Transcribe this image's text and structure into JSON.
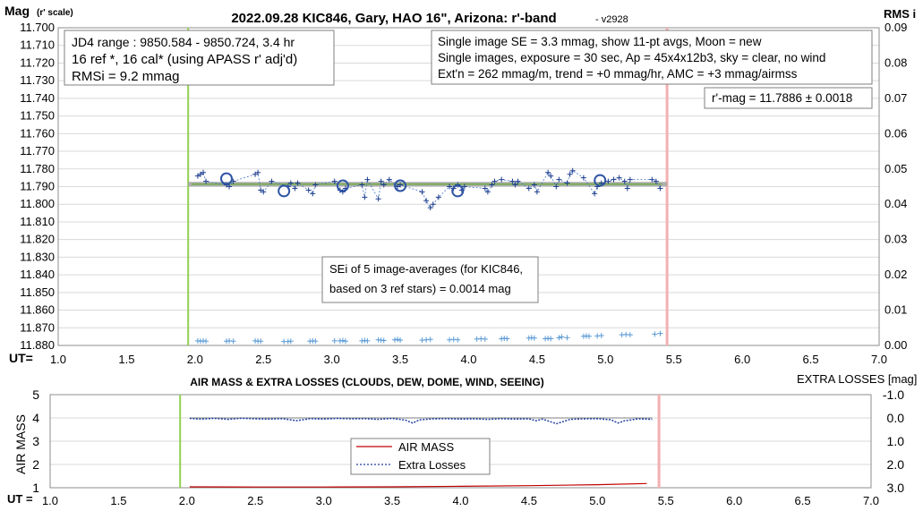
{
  "chart_data": [
    {
      "type": "scatter",
      "title": "2022.09.28 KIC846, Gary, HAO 16\", Arizona: r'-band",
      "version": "- v2928",
      "ylabel_main": "Mag",
      "ylabel_sub": "(r' scale)",
      "y2label": "RMS i",
      "xaxis_prefix": "UT=",
      "xlim": [
        1.0,
        7.0
      ],
      "ylim": [
        11.88,
        11.7
      ],
      "y2lim": [
        0.0,
        0.09
      ],
      "x_ticks": [
        "1.0",
        "1.5",
        "2.0",
        "2.5",
        "3.0",
        "3.5",
        "4.0",
        "4.5",
        "5.0",
        "5.5",
        "6.0",
        "6.5",
        "7.0"
      ],
      "y_ticks": [
        "11.700",
        "11.710",
        "11.720",
        "11.730",
        "11.740",
        "11.750",
        "11.760",
        "11.770",
        "11.780",
        "11.790",
        "11.800",
        "11.810",
        "11.820",
        "11.830",
        "11.840",
        "11.850",
        "11.860",
        "11.870",
        "11.880"
      ],
      "y2_ticks": [
        "0.09",
        "0.08",
        "0.07",
        "0.06",
        "0.05",
        "0.04",
        "0.03",
        "0.02",
        "0.01",
        "0.00"
      ],
      "start_line_x": 1.95,
      "end_line_x": 5.45,
      "trend": {
        "x1": 1.95,
        "x2": 5.45,
        "y": 11.7886
      },
      "box_left": [
        "JD4 range : 9850.584 - 9850.724,  3.4  hr",
        "16 ref *, 16 cal* (using APASS r' adj'd)",
        "RMSi = 9.2 mmag"
      ],
      "box_right": [
        "Single image SE = 3.3 mmag, show  11-pt avgs, Moon = new",
        "Single images, exposure = 30 sec, Ap = 45x4x12b3, sky = clear, no wind",
        "Ext'n = 262 mmag/m, trend = +0  mmag/hr, AMC = +3 mmag/airmss"
      ],
      "box_rmag": "r'-mag = 11.7886 ± 0.0018",
      "box_sei": [
        "SEi of 5 image-averages (for KIC846,",
        "based on 3 ref stars) = 0.0014 mag"
      ],
      "single_points": {
        "x": [
          2.02,
          2.04,
          2.06,
          2.08,
          2.23,
          2.25,
          2.28,
          2.44,
          2.46,
          2.48,
          2.5,
          2.56,
          2.68,
          2.7,
          2.73,
          2.75,
          2.83,
          2.86,
          2.88,
          3.02,
          3.06,
          3.08,
          3.1,
          3.22,
          3.24,
          3.26,
          3.34,
          3.36,
          3.38,
          3.42,
          3.48,
          3.5,
          3.66,
          3.69,
          3.72,
          3.74,
          3.78,
          3.86,
          3.89,
          3.92,
          3.95,
          3.97,
          4.12,
          4.14,
          4.17,
          4.19,
          4.24,
          4.32,
          4.34,
          4.36,
          4.44,
          4.48,
          4.5,
          4.58,
          4.6,
          4.64,
          4.66,
          4.72,
          4.74,
          4.76,
          4.84,
          4.92,
          4.94,
          4.97,
          5.02,
          5.06,
          5.1,
          5.14,
          5.16,
          5.18,
          5.34,
          5.37,
          5.4
        ],
        "y": [
          11.784,
          11.783,
          11.782,
          11.787,
          11.789,
          11.79,
          11.787,
          11.783,
          11.782,
          11.792,
          11.793,
          11.787,
          11.79,
          11.788,
          11.791,
          11.788,
          11.792,
          11.794,
          11.789,
          11.787,
          11.792,
          11.793,
          11.791,
          11.789,
          11.796,
          11.786,
          11.797,
          11.787,
          11.789,
          11.786,
          11.79,
          11.789,
          11.793,
          11.798,
          11.802,
          11.8,
          11.796,
          11.79,
          11.791,
          11.789,
          11.792,
          11.79,
          11.791,
          11.793,
          11.789,
          11.787,
          11.786,
          11.787,
          11.789,
          11.787,
          11.791,
          11.789,
          11.793,
          11.782,
          11.784,
          11.79,
          11.786,
          11.788,
          11.783,
          11.781,
          11.785,
          11.794,
          11.79,
          11.788,
          11.787,
          11.786,
          11.785,
          11.787,
          11.791,
          11.786,
          11.786,
          11.787,
          11.791
        ]
      },
      "averages": {
        "x": [
          2.23,
          2.65,
          3.08,
          3.5,
          3.92,
          4.96
        ],
        "y": [
          11.7855,
          11.7925,
          11.7895,
          11.7895,
          11.7925,
          11.7865
        ]
      },
      "rms_points": {
        "x": [
          2.02,
          2.04,
          2.06,
          2.08,
          2.23,
          2.25,
          2.28,
          2.44,
          2.46,
          2.48,
          2.65,
          2.68,
          2.7,
          2.84,
          2.86,
          2.88,
          3.02,
          3.06,
          3.08,
          3.1,
          3.22,
          3.24,
          3.26,
          3.34,
          3.36,
          3.38,
          3.46,
          3.48,
          3.5,
          3.66,
          3.69,
          3.72,
          3.86,
          3.89,
          3.92,
          4.06,
          4.09,
          4.12,
          4.24,
          4.26,
          4.28,
          4.44,
          4.46,
          4.48,
          4.56,
          4.58,
          4.6,
          4.66,
          4.68,
          4.72,
          4.84,
          4.86,
          4.88,
          4.94,
          4.97,
          5.12,
          5.15,
          5.18,
          5.36,
          5.4
        ],
        "y": [
          0.0013,
          0.0012,
          0.0013,
          0.0012,
          0.0012,
          0.0013,
          0.0012,
          0.0013,
          0.0012,
          0.0012,
          0.0011,
          0.0011,
          0.0012,
          0.0012,
          0.0013,
          0.0012,
          0.0013,
          0.0013,
          0.0014,
          0.0012,
          0.0013,
          0.0014,
          0.0013,
          0.0016,
          0.0015,
          0.0014,
          0.0016,
          0.0017,
          0.0015,
          0.0015,
          0.0016,
          0.0017,
          0.0016,
          0.0017,
          0.0016,
          0.0018,
          0.0019,
          0.0018,
          0.0019,
          0.002,
          0.0019,
          0.0021,
          0.0022,
          0.0021,
          0.0019,
          0.002,
          0.0019,
          0.0022,
          0.0024,
          0.0022,
          0.0026,
          0.0027,
          0.0026,
          0.0027,
          0.0028,
          0.003,
          0.0031,
          0.003,
          0.0032,
          0.0034
        ]
      }
    },
    {
      "type": "line",
      "title": "AIR MASS & EXTRA LOSSES (CLOUDS, DEW, DOME, WIND, SEEING)",
      "ylabel": "AIR MASS",
      "y2label": "EXTRA LOSSES [mag]",
      "xaxis_prefix": "UT =",
      "xlim": [
        1.0,
        7.0
      ],
      "ylim": [
        1,
        5
      ],
      "y2lim": [
        3.0,
        -1.0
      ],
      "x_ticks": [
        "1.0",
        "1.5",
        "2.0",
        "2.5",
        "3.0",
        "3.5",
        "4.0",
        "4.5",
        "5.0",
        "5.5",
        "6.0",
        "6.5",
        "7.0"
      ],
      "y_ticks": [
        "5",
        "4",
        "3",
        "2",
        "1"
      ],
      "y2_ticks": [
        "-1.0",
        "0.0",
        "1.0",
        "2.0",
        "3.0"
      ],
      "start_line_x": 1.95,
      "end_line_x": 5.45,
      "legend": [
        "AIR MASS",
        "Extra Losses"
      ],
      "series": [
        {
          "name": "AIR MASS",
          "x": [
            2.02,
            2.5,
            3.0,
            3.5,
            4.0,
            4.5,
            5.0,
            5.36
          ],
          "y": [
            1.04,
            1.03,
            1.03,
            1.04,
            1.06,
            1.09,
            1.13,
            1.18
          ]
        },
        {
          "name": "Extra Losses",
          "x": [
            2.02,
            2.1,
            2.2,
            2.3,
            2.4,
            2.5,
            2.6,
            2.7,
            2.8,
            2.9,
            3.0,
            3.1,
            3.2,
            3.3,
            3.4,
            3.5,
            3.6,
            3.65,
            3.7,
            3.8,
            3.9,
            4.0,
            4.1,
            4.2,
            4.3,
            4.4,
            4.5,
            4.55,
            4.6,
            4.7,
            4.8,
            4.9,
            5.0,
            5.1,
            5.15,
            5.2,
            5.3,
            5.4
          ],
          "y": [
            0.02,
            0.05,
            0.02,
            0.06,
            0.01,
            0.04,
            0.05,
            0.03,
            0.12,
            0.03,
            0.05,
            0.02,
            0.04,
            0.03,
            0.06,
            0.02,
            0.1,
            0.22,
            0.08,
            0.04,
            0.03,
            0.05,
            0.04,
            0.06,
            0.03,
            0.05,
            0.04,
            0.12,
            0.05,
            0.25,
            0.06,
            0.04,
            0.03,
            0.08,
            0.22,
            0.12,
            0.04,
            0.06
          ]
        }
      ]
    }
  ]
}
